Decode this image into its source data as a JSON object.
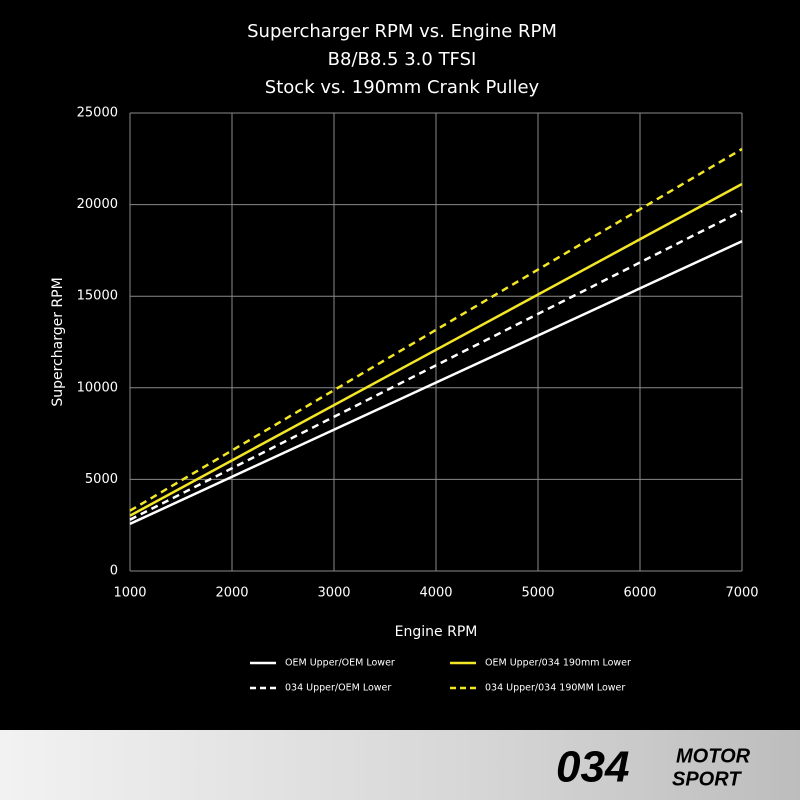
{
  "chart_data": {
    "type": "line",
    "title": "Supercharger RPM vs. Engine RPM",
    "subtitle": [
      "B8/B8.5 3.0 TFSI",
      "Stock vs. 190mm Crank Pulley"
    ],
    "x_label": "Engine RPM",
    "y_label": "Supercharger RPM",
    "x": [
      1000,
      7000
    ],
    "series": [
      {
        "name": "OEM Upper/OEM Lower",
        "color": "#ffffff",
        "dashed": false,
        "values": [
          2570,
          18000
        ]
      },
      {
        "name": "OEM Upper/034 190mm Lower",
        "color": "#f2e626",
        "dashed": false,
        "values": [
          3020,
          21125
        ]
      },
      {
        "name": "034 Upper/OEM Lower",
        "color": "#ffffff",
        "dashed": true,
        "values": [
          2800,
          19650
        ]
      },
      {
        "name": "034 Upper/034 190MM Lower",
        "color": "#f2e626",
        "dashed": true,
        "values": [
          3290,
          23035
        ]
      }
    ],
    "xlim": [
      1000,
      7000
    ],
    "xticks": [
      1000,
      2000,
      3000,
      4000,
      5000,
      6000,
      7000
    ],
    "ylim": [
      0,
      25000
    ],
    "yticks": [
      0,
      5000,
      10000,
      15000,
      20000,
      25000
    ],
    "grid": true,
    "legend": "bottom"
  },
  "footer": {
    "logo_number": "034",
    "logo_word_top": "MOTOR",
    "logo_word_bottom": "SPORT"
  }
}
